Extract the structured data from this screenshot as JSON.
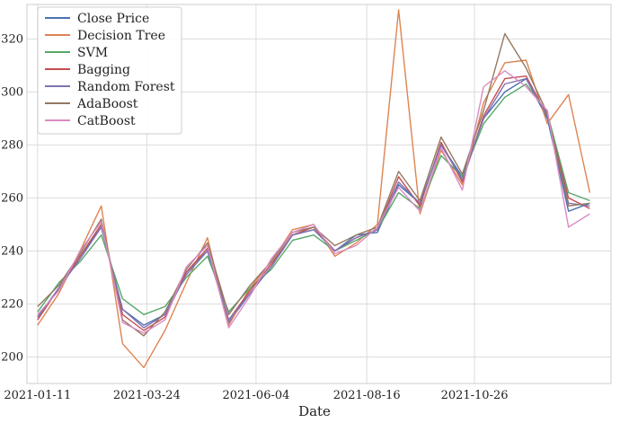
{
  "chart_data": {
    "type": "line",
    "title": "",
    "xlabel": "Date",
    "ylabel": "",
    "x_ticks": [
      "2021-01-11",
      "2021-03-24",
      "2021-06-04",
      "2021-08-16",
      "2021-10-26"
    ],
    "y_ticks": [
      200,
      220,
      240,
      260,
      280,
      300,
      320
    ],
    "xlim": [
      "2021-01-04",
      "2022-01-24"
    ],
    "ylim": [
      190,
      333
    ],
    "grid": true,
    "legend_position": "top-left",
    "x": [
      "2021-01-11",
      "2021-01-25",
      "2021-02-08",
      "2021-02-22",
      "2021-03-08",
      "2021-03-22",
      "2021-04-05",
      "2021-04-19",
      "2021-05-03",
      "2021-05-17",
      "2021-05-31",
      "2021-06-14",
      "2021-06-28",
      "2021-07-12",
      "2021-07-26",
      "2021-08-09",
      "2021-08-23",
      "2021-09-06",
      "2021-09-20",
      "2021-10-04",
      "2021-10-18",
      "2021-11-01",
      "2021-11-15",
      "2021-11-29",
      "2021-12-13",
      "2021-12-27",
      "2022-01-10"
    ],
    "series": [
      {
        "name": "Close Price",
        "color": "#4c72b0",
        "values": [
          215,
          226,
          238,
          249,
          218,
          212,
          216,
          232,
          240,
          213,
          224,
          234,
          246,
          248,
          240,
          246,
          247,
          265,
          258,
          280,
          268,
          290,
          300,
          305,
          290,
          255,
          258
        ]
      },
      {
        "name": "Decision Tree",
        "color": "#dd8452",
        "values": [
          212,
          224,
          240,
          257,
          205,
          196,
          210,
          228,
          245,
          212,
          226,
          236,
          248,
          250,
          238,
          243,
          250,
          331,
          254,
          278,
          265,
          296,
          311,
          312,
          288,
          299,
          262
        ]
      },
      {
        "name": "SVM",
        "color": "#55a868",
        "values": [
          217,
          228,
          236,
          246,
          222,
          216,
          219,
          230,
          238,
          217,
          226,
          233,
          244,
          246,
          240,
          244,
          248,
          262,
          256,
          276,
          268,
          288,
          298,
          303,
          292,
          262,
          259
        ]
      },
      {
        "name": "Bagging",
        "color": "#c44e52",
        "values": [
          214,
          226,
          238,
          250,
          216,
          210,
          215,
          232,
          241,
          214,
          225,
          235,
          246,
          249,
          240,
          245,
          248,
          268,
          257,
          281,
          266,
          291,
          305,
          306,
          291,
          260,
          256
        ]
      },
      {
        "name": "Random Forest",
        "color": "#8172b3",
        "values": [
          215,
          226,
          237,
          249,
          218,
          211,
          216,
          231,
          240,
          214,
          224,
          234,
          246,
          248,
          240,
          245,
          248,
          266,
          258,
          280,
          267,
          290,
          303,
          305,
          291,
          258,
          257
        ]
      },
      {
        "name": "AdaBoost",
        "color": "#937860",
        "values": [
          219,
          227,
          239,
          252,
          214,
          208,
          217,
          233,
          243,
          216,
          227,
          236,
          247,
          249,
          242,
          246,
          249,
          270,
          259,
          283,
          269,
          293,
          322,
          309,
          292,
          257,
          258
        ]
      },
      {
        "name": "CatBoost",
        "color": "#da8bc3",
        "values": [
          216,
          225,
          240,
          251,
          213,
          209,
          214,
          234,
          242,
          211,
          223,
          237,
          247,
          250,
          239,
          242,
          249,
          264,
          255,
          279,
          263,
          302,
          308,
          302,
          293,
          249,
          254
        ]
      }
    ]
  }
}
